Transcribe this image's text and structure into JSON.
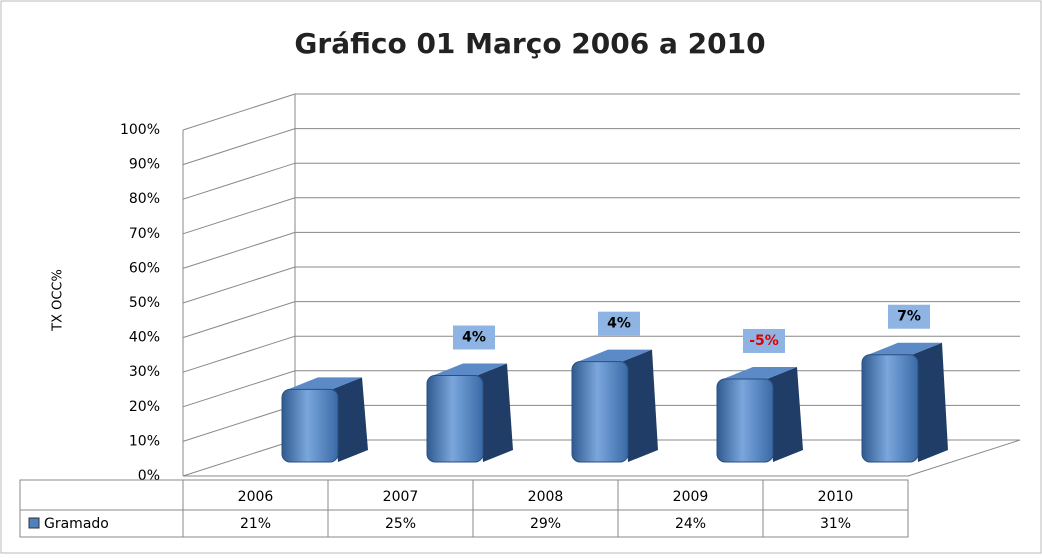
{
  "chart_data": {
    "type": "bar3d",
    "title": "Gráfico 01 Março 2006 a 2010",
    "y_axis_label": "TX OCC%",
    "categories": [
      "2006",
      "2007",
      "2008",
      "2009",
      "2010"
    ],
    "series": [
      {
        "name": "Gramado",
        "color": "#4f81bd",
        "values": [
          21,
          25,
          29,
          24,
          31
        ],
        "value_labels": [
          "21%",
          "25%",
          "29%",
          "24%",
          "31%"
        ]
      }
    ],
    "annotations": [
      null,
      {
        "text": "4%",
        "color": "#000000"
      },
      {
        "text": "4%",
        "color": "#000000"
      },
      {
        "text": "-5%",
        "color": "#e00000"
      },
      {
        "text": "7%",
        "color": "#000000"
      }
    ],
    "ylim": [
      0,
      100
    ],
    "yticks": [
      {
        "value": 0,
        "label": "0%"
      },
      {
        "value": 10,
        "label": "10%"
      },
      {
        "value": 20,
        "label": "20%"
      },
      {
        "value": 30,
        "label": "30%"
      },
      {
        "value": 40,
        "label": "40%"
      },
      {
        "value": 50,
        "label": "50%"
      },
      {
        "value": 60,
        "label": "60%"
      },
      {
        "value": 70,
        "label": "70%"
      },
      {
        "value": 80,
        "label": "80%"
      },
      {
        "value": 90,
        "label": "90%"
      },
      {
        "value": 100,
        "label": "100%"
      }
    ],
    "grid": true
  }
}
